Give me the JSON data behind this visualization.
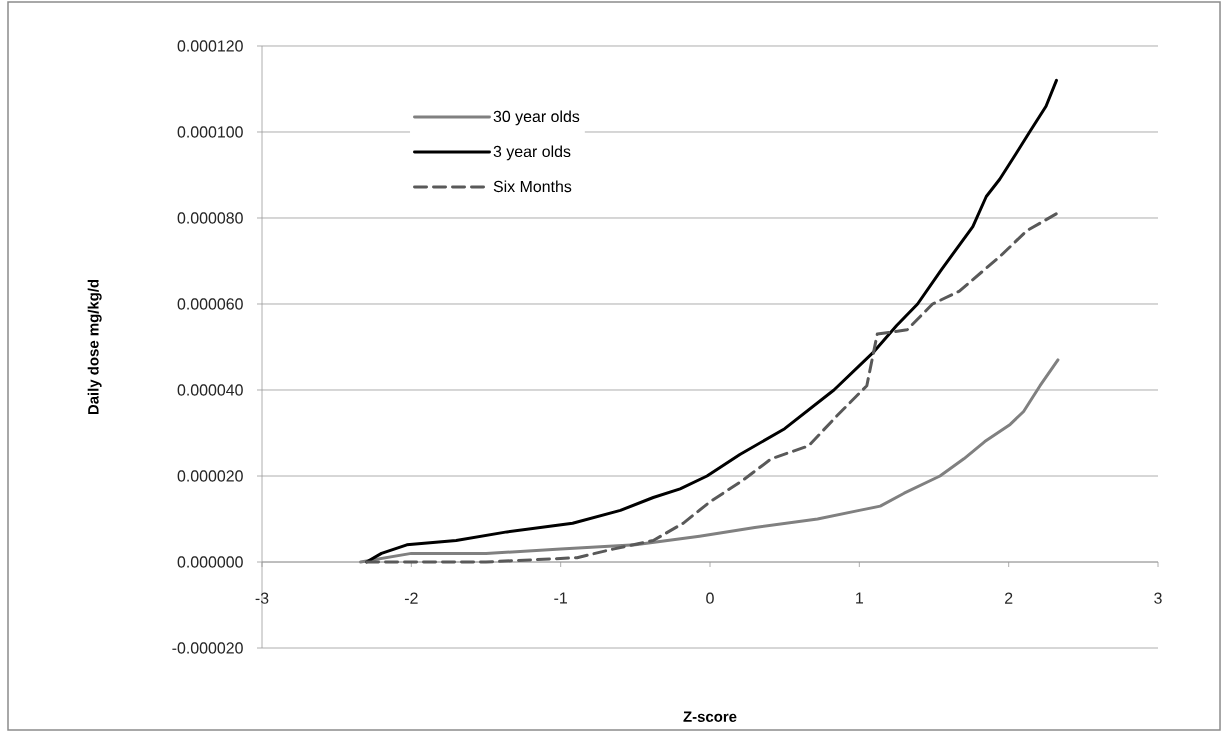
{
  "chart_data": {
    "type": "line",
    "xlabel": "Z-score",
    "ylabel": "Daily dose mg/kg/d",
    "xlim": [
      -3,
      3
    ],
    "xticks": [
      -3,
      -2,
      -1,
      0,
      1,
      2,
      3
    ],
    "ylim": [
      -2e-05,
      0.00012
    ],
    "yticks": [
      {
        "value": -2e-05,
        "label": "-0.000020"
      },
      {
        "value": 0,
        "label": "0.000000"
      },
      {
        "value": 2e-05,
        "label": "0.000020"
      },
      {
        "value": 4e-05,
        "label": "0.000040"
      },
      {
        "value": 6e-05,
        "label": "0.000060"
      },
      {
        "value": 8e-05,
        "label": "0.000080"
      },
      {
        "value": 0.0001,
        "label": "0.000100"
      },
      {
        "value": 0.00012,
        "label": "0.000120"
      }
    ],
    "grid": "y",
    "legend": "top left",
    "marker": "none",
    "series": [
      {
        "name": "30 year olds",
        "color": "#808080",
        "line_style": "solid",
        "x": [
          -2.34,
          -2.0,
          -1.5,
          -1.0,
          -0.5,
          -0.07,
          0.3,
          0.72,
          1.0,
          1.14,
          1.3,
          1.54,
          1.7,
          1.84,
          2.01,
          2.1,
          2.21,
          2.33
        ],
        "values": [
          0,
          2e-06,
          2e-06,
          3e-06,
          4e-06,
          6e-06,
          8e-06,
          1e-05,
          1.2e-05,
          1.3e-05,
          1.6e-05,
          2e-05,
          2.4e-05,
          2.8e-05,
          3.2e-05,
          3.5e-05,
          4.1e-05,
          4.7e-05
        ]
      },
      {
        "name": "3 year olds",
        "color": "#000000",
        "line_style": "solid",
        "x": [
          -2.3,
          -2.2,
          -2.03,
          -1.7,
          -1.36,
          -0.92,
          -0.6,
          -0.38,
          -0.2,
          -0.02,
          0.2,
          0.5,
          0.83,
          1.1,
          1.25,
          1.39,
          1.55,
          1.76,
          1.85,
          1.94,
          2.05,
          2.14,
          2.25,
          2.32
        ],
        "values": [
          0,
          2e-06,
          4e-06,
          5e-06,
          7e-06,
          9e-06,
          1.2e-05,
          1.5e-05,
          1.7e-05,
          2e-05,
          2.5e-05,
          3.1e-05,
          4e-05,
          4.9e-05,
          5.5e-05,
          6e-05,
          6.8e-05,
          7.8e-05,
          8.5e-05,
          8.9e-05,
          9.5e-05,
          0.0001,
          0.000106,
          0.000112
        ]
      },
      {
        "name": "Six Months",
        "color": "#595959",
        "line_style": "dashed",
        "x": [
          -2.3,
          -1.5,
          -0.89,
          -0.65,
          -0.38,
          -0.18,
          0.0,
          0.22,
          0.41,
          0.66,
          0.85,
          1.05,
          1.12,
          1.32,
          1.49,
          1.67,
          1.94,
          2.12,
          2.32
        ],
        "values": [
          0,
          0,
          1e-06,
          3e-06,
          5e-06,
          9e-06,
          1.4e-05,
          1.9e-05,
          2.4e-05,
          2.7e-05,
          3.4e-05,
          4.1e-05,
          5.3e-05,
          5.4e-05,
          6e-05,
          6.3e-05,
          7.1e-05,
          7.7e-05,
          8.1e-05
        ]
      }
    ]
  }
}
